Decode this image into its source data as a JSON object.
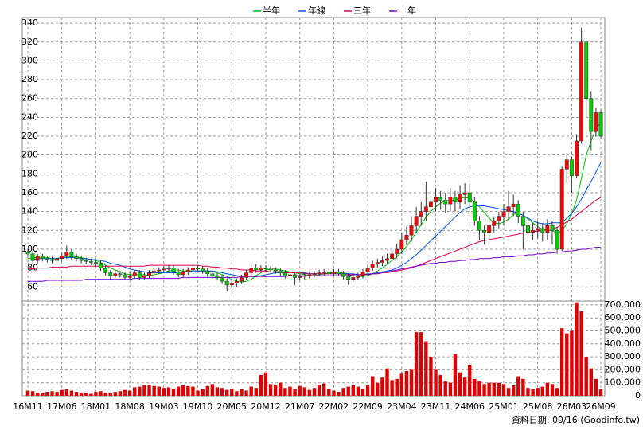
{
  "chart_data": {
    "type": "candlestick",
    "categories": [
      "16M11",
      null,
      null,
      null,
      null,
      null,
      null,
      "17M06",
      null,
      null,
      null,
      null,
      null,
      null,
      "18M01",
      null,
      null,
      null,
      null,
      null,
      null,
      "18M08",
      null,
      null,
      null,
      null,
      null,
      null,
      "19M03",
      null,
      null,
      null,
      null,
      null,
      null,
      "19M10",
      null,
      null,
      null,
      null,
      null,
      null,
      "20M05",
      null,
      null,
      null,
      null,
      null,
      null,
      "20M12",
      null,
      null,
      null,
      null,
      null,
      null,
      "21M07",
      null,
      null,
      null,
      null,
      null,
      null,
      "22M02",
      null,
      null,
      null,
      null,
      null,
      null,
      "22M09",
      null,
      null,
      null,
      null,
      null,
      null,
      "23M04",
      null,
      null,
      null,
      null,
      null,
      null,
      "23M11",
      null,
      null,
      null,
      null,
      null,
      null,
      "24M06",
      null,
      null,
      null,
      null,
      null,
      null,
      "25M01",
      null,
      null,
      null,
      null,
      null,
      null,
      "25M08",
      null,
      null,
      null,
      null,
      null,
      null,
      "26M03",
      null,
      null,
      null,
      null,
      null,
      "26M09"
    ],
    "open": [
      97,
      95,
      88,
      92,
      90,
      89,
      88,
      90,
      93,
      97,
      92,
      90,
      88,
      87,
      86,
      85,
      80,
      75,
      72,
      74,
      73,
      70,
      72,
      75,
      70,
      72,
      75,
      77,
      78,
      79,
      80,
      76,
      73,
      76,
      78,
      80,
      79,
      77,
      74,
      72,
      70,
      66,
      62,
      64,
      66,
      70,
      75,
      80,
      78,
      80,
      79,
      78,
      77,
      75,
      72,
      73,
      70,
      71,
      72,
      73,
      74,
      75,
      76,
      74,
      76,
      74,
      71,
      68,
      70,
      72,
      76,
      80,
      84,
      86,
      88,
      90,
      95,
      100,
      110,
      115,
      125,
      135,
      140,
      145,
      150,
      155,
      152,
      148,
      155,
      150,
      158,
      160,
      150,
      130,
      120,
      118,
      125,
      130,
      135,
      140,
      145,
      148,
      135,
      125,
      118,
      120,
      122,
      118,
      125,
      120,
      100,
      185,
      195,
      178,
      215,
      320,
      260,
      225,
      245
    ],
    "high": [
      100,
      98,
      95,
      95,
      93,
      92,
      93,
      96,
      104,
      100,
      95,
      93,
      91,
      90,
      89,
      88,
      83,
      78,
      77,
      77,
      76,
      75,
      78,
      78,
      75,
      78,
      80,
      81,
      82,
      83,
      83,
      79,
      79,
      81,
      83,
      83,
      82,
      80,
      77,
      75,
      73,
      69,
      67,
      69,
      73,
      78,
      83,
      84,
      83,
      83,
      82,
      81,
      80,
      78,
      76,
      76,
      74,
      75,
      76,
      77,
      78,
      79,
      79,
      79,
      79,
      77,
      74,
      73,
      75,
      79,
      84,
      88,
      90,
      92,
      95,
      101,
      106,
      118,
      124,
      135,
      145,
      150,
      172,
      160,
      165,
      162,
      160,
      165,
      162,
      168,
      170,
      168,
      155,
      135,
      125,
      130,
      135,
      140,
      148,
      162,
      158,
      152,
      140,
      130,
      128,
      130,
      128,
      132,
      130,
      124,
      188,
      202,
      198,
      222,
      335,
      322,
      268,
      250,
      248
    ],
    "low": [
      92,
      85,
      85,
      87,
      86,
      85,
      85,
      87,
      90,
      89,
      87,
      85,
      84,
      83,
      82,
      77,
      72,
      67,
      69,
      70,
      67,
      67,
      69,
      67,
      67,
      69,
      72,
      74,
      75,
      76,
      73,
      70,
      70,
      73,
      75,
      76,
      74,
      71,
      69,
      67,
      63,
      55,
      58,
      60,
      63,
      67,
      72,
      75,
      75,
      76,
      75,
      74,
      72,
      69,
      69,
      62,
      67,
      68,
      69,
      70,
      71,
      72,
      71,
      71,
      71,
      68,
      62,
      65,
      67,
      69,
      73,
      77,
      80,
      82,
      84,
      86,
      90,
      95,
      104,
      108,
      118,
      125,
      130,
      135,
      140,
      142,
      138,
      140,
      140,
      142,
      148,
      140,
      125,
      110,
      105,
      110,
      118,
      122,
      125,
      130,
      135,
      128,
      100,
      108,
      110,
      112,
      108,
      110,
      105,
      95,
      98,
      170,
      160,
      175,
      212,
      240,
      205,
      220,
      218
    ],
    "close": [
      95,
      88,
      92,
      90,
      89,
      88,
      90,
      93,
      97,
      92,
      90,
      88,
      87,
      86,
      85,
      80,
      75,
      72,
      74,
      73,
      70,
      72,
      75,
      70,
      72,
      75,
      77,
      78,
      79,
      80,
      76,
      73,
      76,
      78,
      80,
      79,
      77,
      74,
      72,
      70,
      66,
      62,
      64,
      66,
      70,
      75,
      80,
      78,
      80,
      79,
      78,
      77,
      75,
      72,
      73,
      70,
      71,
      72,
      73,
      74,
      75,
      76,
      74,
      76,
      74,
      71,
      68,
      70,
      72,
      76,
      80,
      84,
      86,
      88,
      90,
      95,
      100,
      110,
      115,
      125,
      135,
      140,
      145,
      150,
      155,
      152,
      148,
      155,
      150,
      158,
      160,
      150,
      130,
      120,
      118,
      125,
      130,
      135,
      140,
      145,
      148,
      135,
      125,
      118,
      120,
      122,
      118,
      125,
      120,
      100,
      185,
      195,
      178,
      215,
      320,
      260,
      225,
      245,
      220
    ],
    "up_color": "#ff0000",
    "down_color": "#00cc00",
    "ylim": [
      45,
      346
    ],
    "yticks": [
      60,
      80,
      100,
      120,
      140,
      160,
      180,
      200,
      220,
      240,
      260,
      280,
      300,
      320,
      340
    ],
    "grid": true,
    "series": [
      {
        "name": "半年",
        "color": "#00bb00",
        "values": [
          90,
          91,
          91,
          91,
          91,
          90,
          90,
          91,
          92,
          92,
          91,
          91,
          90,
          89,
          88,
          86,
          83,
          80,
          78,
          76,
          74,
          73,
          73,
          73,
          73,
          72,
          73,
          74,
          75,
          77,
          78,
          78,
          77,
          77,
          77,
          77,
          77,
          77,
          76,
          75,
          73,
          71,
          68,
          66,
          65,
          66,
          68,
          72,
          75,
          78,
          79,
          79,
          78,
          77,
          76,
          75,
          74,
          73,
          72,
          72,
          73,
          74,
          75,
          75,
          75,
          75,
          74,
          72,
          71,
          71,
          72,
          74,
          77,
          80,
          84,
          88,
          92,
          97,
          103,
          110,
          118,
          126,
          134,
          140,
          145,
          149,
          151,
          152,
          152,
          154,
          155,
          154,
          150,
          145,
          139,
          133,
          128,
          127,
          129,
          132,
          137,
          138,
          136,
          132,
          128,
          124,
          121,
          120,
          120,
          117,
          120,
          127,
          138,
          152,
          175,
          200,
          215,
          228,
          235
        ]
      },
      {
        "name": "年線",
        "color": "#0055ee",
        "values": [
          88,
          89,
          90,
          90,
          90,
          90,
          90,
          91,
          91,
          91,
          91,
          90,
          90,
          89,
          89,
          88,
          87,
          85,
          84,
          83,
          81,
          79,
          78,
          77,
          76,
          75,
          75,
          75,
          75,
          75,
          75,
          75,
          76,
          76,
          77,
          77,
          77,
          77,
          77,
          76,
          75,
          74,
          73,
          72,
          71,
          71,
          71,
          71,
          72,
          73,
          74,
          75,
          75,
          75,
          75,
          75,
          75,
          75,
          74,
          74,
          74,
          74,
          74,
          74,
          74,
          74,
          74,
          74,
          73,
          73,
          74,
          74,
          75,
          76,
          77,
          78,
          80,
          83,
          86,
          90,
          94,
          99,
          104,
          109,
          114,
          119,
          124,
          129,
          134,
          139,
          143,
          145,
          146,
          146,
          146,
          145,
          144,
          143,
          142,
          141,
          140,
          138,
          136,
          133,
          130,
          128,
          127,
          127,
          128,
          128,
          128,
          133,
          138,
          145,
          153,
          163,
          172,
          182,
          192
        ]
      },
      {
        "name": "三年",
        "color": "#dd0055",
        "values": [
          79,
          79,
          80,
          80,
          80,
          81,
          81,
          81,
          81,
          82,
          82,
          82,
          82,
          82,
          82,
          82,
          82,
          82,
          82,
          82,
          82,
          82,
          82,
          82,
          82,
          83,
          83,
          83,
          83,
          83,
          83,
          83,
          83,
          83,
          83,
          83,
          82,
          82,
          81,
          81,
          80,
          80,
          79,
          79,
          78,
          78,
          78,
          77,
          77,
          77,
          76,
          76,
          76,
          75,
          75,
          75,
          75,
          74,
          74,
          74,
          74,
          74,
          74,
          74,
          74,
          73,
          73,
          73,
          73,
          73,
          73,
          74,
          74,
          75,
          75,
          76,
          77,
          78,
          79,
          80,
          82,
          84,
          86,
          88,
          90,
          92,
          94,
          96,
          98,
          100,
          102,
          104,
          106,
          108,
          109,
          110,
          111,
          112,
          113,
          114,
          115,
          116,
          117,
          118,
          119,
          119,
          120,
          121,
          122,
          123,
          126,
          129,
          132,
          136,
          140,
          144,
          148,
          152,
          155
        ]
      },
      {
        "name": "十年",
        "color": "#7700cc",
        "values": [
          66,
          66,
          66,
          66,
          67,
          67,
          67,
          67,
          67,
          67,
          67,
          67,
          68,
          68,
          68,
          68,
          68,
          68,
          68,
          68,
          68,
          68,
          69,
          69,
          69,
          69,
          69,
          69,
          69,
          69,
          69,
          69,
          70,
          70,
          70,
          70,
          70,
          70,
          70,
          70,
          70,
          70,
          70,
          70,
          71,
          71,
          71,
          71,
          71,
          71,
          71,
          71,
          71,
          71,
          72,
          72,
          72,
          72,
          72,
          72,
          72,
          72,
          72,
          72,
          72,
          72,
          72,
          73,
          73,
          73,
          73,
          74,
          74,
          75,
          76,
          77,
          78,
          79,
          80,
          81,
          82,
          83,
          84,
          85,
          85,
          86,
          86,
          87,
          87,
          88,
          88,
          89,
          89,
          90,
          90,
          90,
          91,
          91,
          92,
          92,
          92,
          93,
          93,
          94,
          94,
          95,
          95,
          96,
          96,
          97,
          97,
          98,
          98,
          99,
          100,
          100,
          101,
          102,
          102
        ]
      }
    ],
    "volume": {
      "color": "#dd0000",
      "values": [
        40000,
        35000,
        25000,
        20000,
        30000,
        35000,
        30000,
        45000,
        50000,
        40000,
        30000,
        25000,
        20000,
        15000,
        30000,
        35000,
        25000,
        20000,
        30000,
        35000,
        45000,
        40000,
        65000,
        70000,
        80000,
        85000,
        75000,
        70000,
        60000,
        65000,
        55000,
        70000,
        80000,
        75000,
        70000,
        40000,
        50000,
        75000,
        90000,
        65000,
        60000,
        45000,
        55000,
        35000,
        50000,
        40000,
        70000,
        60000,
        160000,
        180000,
        90000,
        80000,
        100000,
        60000,
        70000,
        50000,
        75000,
        65000,
        45000,
        60000,
        85000,
        95000,
        55000,
        40000,
        30000,
        60000,
        70000,
        80000,
        70000,
        55000,
        80000,
        150000,
        100000,
        140000,
        210000,
        120000,
        130000,
        170000,
        190000,
        200000,
        490000,
        490000,
        420000,
        300000,
        200000,
        160000,
        110000,
        100000,
        320000,
        180000,
        140000,
        240000,
        130000,
        110000,
        90000,
        100000,
        100000,
        100000,
        90000,
        60000,
        80000,
        150000,
        130000,
        60000,
        50000,
        60000,
        70000,
        100000,
        90000,
        60000,
        520000,
        480000,
        500000,
        720000,
        650000,
        300000,
        210000,
        130000,
        50000
      ],
      "ylim": [
        0,
        730000
      ],
      "yticks": [
        0,
        {
          "value": 100000,
          "label": "100,000"
        },
        {
          "value": 200000,
          "label": "200,000"
        },
        {
          "value": 300000,
          "label": "300,000"
        },
        {
          "value": 400000,
          "label": "400,000"
        },
        {
          "value": 500000,
          "label": "500,000"
        },
        {
          "value": 600000,
          "label": "600,000"
        },
        {
          "value": 700000,
          "label": "700,000"
        }
      ]
    },
    "note": "資料日期: 09/16 (Goodinfo.tw)"
  }
}
